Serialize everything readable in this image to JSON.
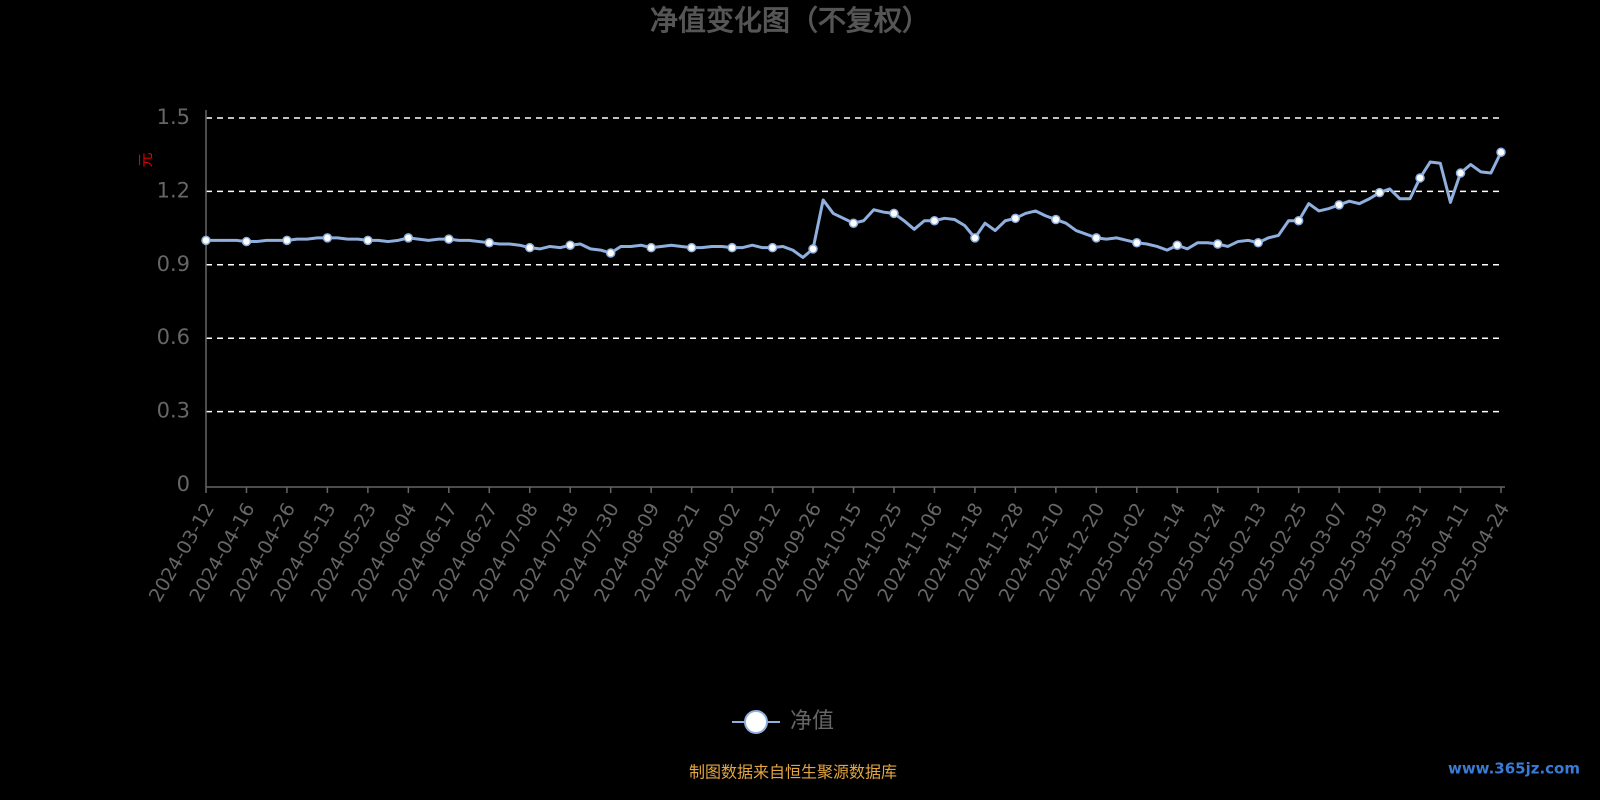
{
  "chart_data": {
    "type": "line",
    "title": "净值变化图（不复权）",
    "y_label": "元",
    "categories": [
      "2024-03-12",
      null,
      null,
      null,
      "2024-04-16",
      null,
      null,
      null,
      "2024-04-26",
      null,
      null,
      null,
      "2024-05-13",
      null,
      null,
      null,
      "2024-05-23",
      null,
      null,
      null,
      "2024-06-04",
      null,
      null,
      null,
      "2024-06-17",
      null,
      null,
      null,
      "2024-06-27",
      null,
      null,
      null,
      "2024-07-08",
      null,
      null,
      null,
      "2024-07-18",
      null,
      null,
      null,
      "2024-07-30",
      null,
      null,
      null,
      "2024-08-09",
      null,
      null,
      null,
      "2024-08-21",
      null,
      null,
      null,
      "2024-09-02",
      null,
      null,
      null,
      "2024-09-12",
      null,
      null,
      null,
      "2024-09-26",
      null,
      null,
      null,
      "2024-10-15",
      null,
      null,
      null,
      "2024-10-25",
      null,
      null,
      null,
      "2024-11-06",
      null,
      null,
      null,
      "2024-11-18",
      null,
      null,
      null,
      "2024-11-28",
      null,
      null,
      null,
      "2024-12-10",
      null,
      null,
      null,
      "2024-12-20",
      null,
      null,
      null,
      "2025-01-02",
      null,
      null,
      null,
      "2025-01-14",
      null,
      null,
      null,
      "2025-01-24",
      null,
      null,
      null,
      "2025-02-13",
      null,
      null,
      null,
      "2025-02-25",
      null,
      null,
      null,
      "2025-03-07",
      null,
      null,
      null,
      "2025-03-19",
      null,
      null,
      null,
      "2025-03-31",
      null,
      null,
      null,
      "2025-04-11",
      null,
      null,
      null,
      "2025-04-24"
    ],
    "series": [
      {
        "name": "净值",
        "color": "#8fb0de",
        "values": [
          1.0,
          1.0,
          1.0,
          1.0,
          0.995,
          0.995,
          1.0,
          1.0,
          1.0,
          1.005,
          1.005,
          1.01,
          1.01,
          1.01,
          1.005,
          1.005,
          1.0,
          1.0,
          0.995,
          1.0,
          1.01,
          1.005,
          1.0,
          1.005,
          1.005,
          1.0,
          1.0,
          0.995,
          0.99,
          0.985,
          0.985,
          0.98,
          0.97,
          0.965,
          0.975,
          0.97,
          0.98,
          0.985,
          0.965,
          0.96,
          0.948,
          0.975,
          0.975,
          0.98,
          0.97,
          0.975,
          0.98,
          0.975,
          0.97,
          0.97,
          0.975,
          0.975,
          0.97,
          0.97,
          0.98,
          0.97,
          0.97,
          0.975,
          0.96,
          0.93,
          0.965,
          1.165,
          1.11,
          1.09,
          1.07,
          1.08,
          1.125,
          1.115,
          1.11,
          1.08,
          1.045,
          1.08,
          1.08,
          1.09,
          1.085,
          1.06,
          1.01,
          1.07,
          1.04,
          1.08,
          1.09,
          1.11,
          1.12,
          1.1,
          1.085,
          1.07,
          1.04,
          1.025,
          1.01,
          1.005,
          1.01,
          1.0,
          0.99,
          0.985,
          0.975,
          0.96,
          0.98,
          0.965,
          0.99,
          0.99,
          0.985,
          0.975,
          0.995,
          1.0,
          0.99,
          1.01,
          1.02,
          1.08,
          1.08,
          1.15,
          1.12,
          1.13,
          1.145,
          1.16,
          1.15,
          1.17,
          1.195,
          1.21,
          1.17,
          1.17,
          1.255,
          1.32,
          1.315,
          1.155,
          1.275,
          1.31,
          1.28,
          1.275,
          1.36
        ]
      }
    ],
    "ylim": [
      0,
      1.5
    ],
    "yticks": [
      0,
      0.3,
      0.6,
      0.9,
      1.2,
      1.5
    ],
    "grid": true,
    "legend": "bottom",
    "source": "制图数据来自恒生聚源数据库",
    "watermark": "www.365jz.com"
  }
}
